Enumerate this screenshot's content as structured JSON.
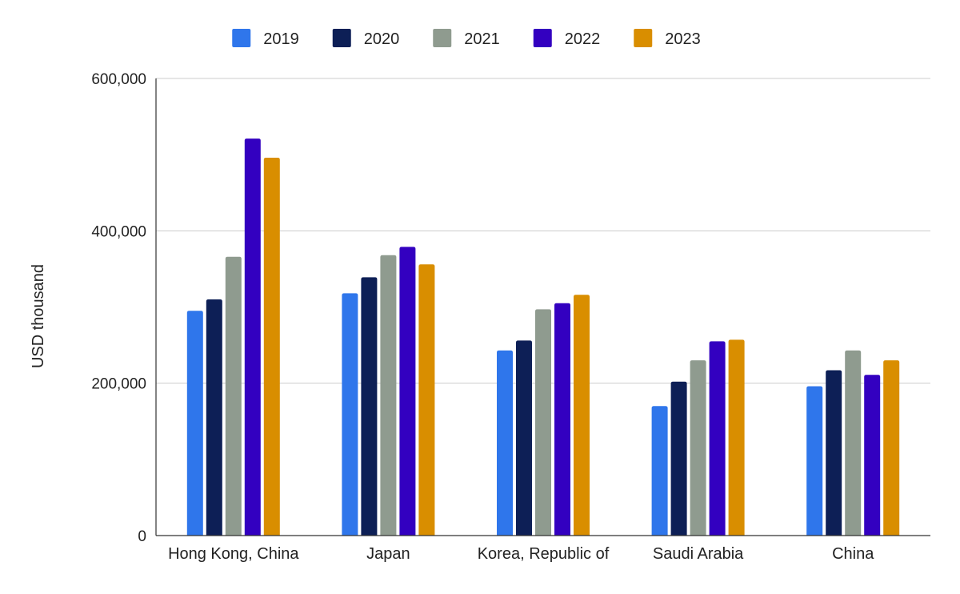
{
  "chart_data": {
    "type": "bar",
    "title": "",
    "xlabel": "",
    "ylabel": "USD thousand",
    "ylim": [
      0,
      600000
    ],
    "yticks": [
      0,
      200000,
      400000,
      600000
    ],
    "ytick_labels": [
      "0",
      "200,000",
      "400,000",
      "600,000"
    ],
    "grid": true,
    "legend_position": "top-center",
    "categories": [
      "Hong Kong, China",
      "Japan",
      "Korea, Republic of",
      "Saudi Arabia",
      "China"
    ],
    "series": [
      {
        "name": "2019",
        "color": "#2F76EB",
        "values": [
          295000,
          318000,
          243000,
          170000,
          196000
        ]
      },
      {
        "name": "2020",
        "color": "#0D1F56",
        "values": [
          310000,
          339000,
          256000,
          202000,
          217000
        ]
      },
      {
        "name": "2021",
        "color": "#8F9B8F",
        "values": [
          366000,
          368000,
          297000,
          230000,
          243000
        ]
      },
      {
        "name": "2022",
        "color": "#3300C0",
        "values": [
          521000,
          379000,
          305000,
          255000,
          211000
        ]
      },
      {
        "name": "2023",
        "color": "#D98E00",
        "values": [
          496000,
          356000,
          316000,
          257000,
          230000
        ]
      }
    ]
  }
}
